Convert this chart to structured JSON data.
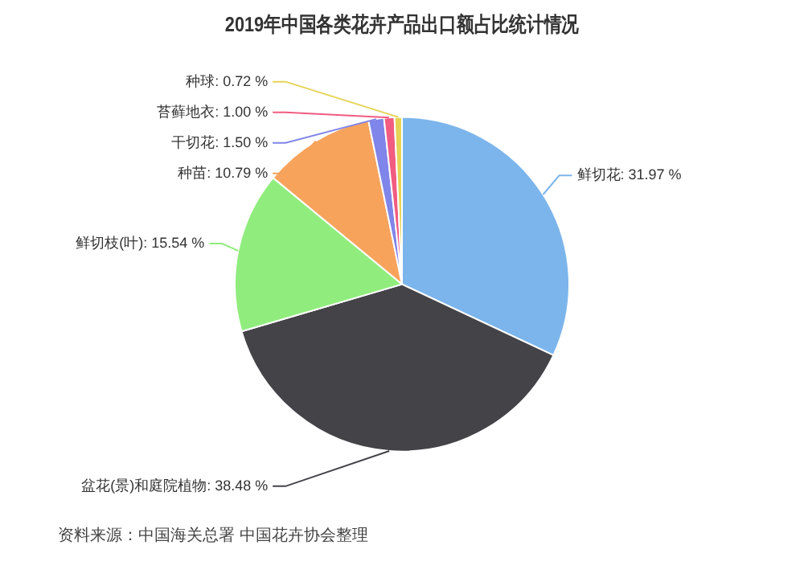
{
  "chart_data": {
    "type": "pie",
    "title": "2019年中国各类花卉产品出口额占比统计情况",
    "categories": [
      "鲜切花",
      "盆花(景)和庭院植物",
      "鲜切枝(叶)",
      "种苗",
      "干切花",
      "苔藓地衣",
      "种球"
    ],
    "values": [
      31.97,
      38.48,
      15.54,
      10.79,
      1.5,
      1.0,
      0.72
    ],
    "value_labels": [
      ": 31.97 %",
      ": 38.48 %",
      ": 15.54 %",
      ": 10.79 %",
      ": 1.50 %",
      ": 1.00 %",
      ": 0.72 %"
    ],
    "colors": [
      "#7cb5ec",
      "#434348",
      "#90ed7d",
      "#f7a35c",
      "#8085e9",
      "#f15c80",
      "#e4d354"
    ],
    "legend": false,
    "annotations": [
      "资料来源：中国海关总署 中国花卉协会整理"
    ]
  }
}
